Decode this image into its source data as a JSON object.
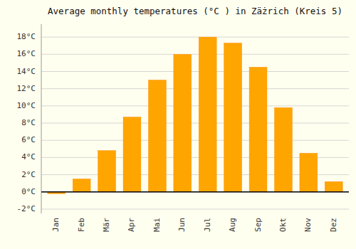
{
  "chart_data": {
    "type": "bar",
    "title": "Average monthly temperatures (°C ) in Zäżrich (Kreis 5)",
    "categories": [
      "Jan",
      "Feb",
      "Mär",
      "Apr",
      "Mai",
      "Jun",
      "Jul",
      "Aug",
      "Sep",
      "Okt",
      "Nov",
      "Dez"
    ],
    "values": [
      -0.2,
      1.5,
      4.8,
      8.7,
      13.0,
      16.0,
      18.0,
      17.3,
      14.5,
      9.8,
      4.5,
      1.2
    ],
    "color": "#FFA500",
    "ylim": [
      -2.5,
      19.5
    ],
    "yticks": [
      {
        "value": -2,
        "label": "-2°C"
      },
      {
        "value": 0,
        "label": "0°C"
      },
      {
        "value": 2,
        "label": "2°C"
      },
      {
        "value": 4,
        "label": "4°C"
      },
      {
        "value": 6,
        "label": "6°C"
      },
      {
        "value": 8,
        "label": "8°C"
      },
      {
        "value": 10,
        "label": "10°C"
      },
      {
        "value": 12,
        "label": "12°C"
      },
      {
        "value": 14,
        "label": "14°C"
      },
      {
        "value": 16,
        "label": "16°C"
      },
      {
        "value": 18,
        "label": "18°C"
      }
    ],
    "grid": true
  }
}
